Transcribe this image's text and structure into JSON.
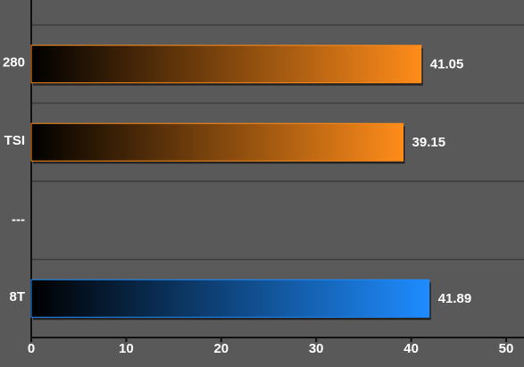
{
  "chart_data": {
    "type": "barh",
    "categories": [
      "280",
      "TSI",
      "---",
      "8T"
    ],
    "values": [
      41.05,
      39.15,
      null,
      41.89
    ],
    "colors": [
      "#ff8c1a",
      "#ff8c1a",
      null,
      "#1e8cff"
    ],
    "xlim": [
      0,
      50
    ],
    "xticks": [
      0,
      10,
      20,
      30,
      40,
      50
    ],
    "grid": true
  }
}
